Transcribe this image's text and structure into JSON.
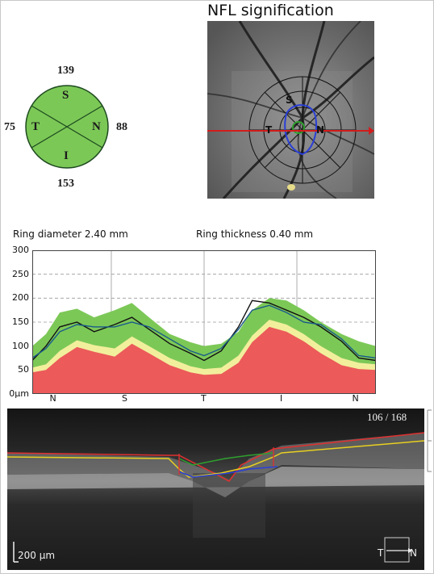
{
  "sectors": {
    "superior": "139",
    "temporal": "75",
    "nasal": "88",
    "inferior": "153",
    "labels": {
      "s": "S",
      "t": "T",
      "n": "N",
      "i": "I"
    },
    "fill_color": "#7cc857"
  },
  "fundus": {
    "title": "NFL signification",
    "labels": {
      "s": "S",
      "t": "T",
      "n": "N"
    },
    "scan_line_color": "#d21c1c"
  },
  "params": {
    "ring_diameter": "Ring diameter 2.40 mm",
    "ring_thickness": "Ring thickness 0.40 mm"
  },
  "chart_data": {
    "type": "area",
    "ylim": [
      0,
      300
    ],
    "y_ticks": [
      "300",
      "250",
      "200",
      "150",
      "100",
      "50",
      "0μm"
    ],
    "x_ticks": [
      "N",
      "S",
      "T",
      "I",
      "N"
    ],
    "x_tick_fractions": [
      0.06,
      0.27,
      0.5,
      0.73,
      0.94
    ],
    "x": [
      0,
      0.04,
      0.08,
      0.13,
      0.18,
      0.24,
      0.29,
      0.34,
      0.4,
      0.46,
      0.5,
      0.55,
      0.6,
      0.64,
      0.69,
      0.74,
      0.79,
      0.84,
      0.9,
      0.95,
      1
    ],
    "bands": {
      "red_top": [
        45,
        50,
        75,
        98,
        88,
        78,
        105,
        85,
        60,
        45,
        40,
        42,
        65,
        108,
        140,
        130,
        110,
        85,
        60,
        52,
        50
      ],
      "yellow_top": [
        55,
        62,
        90,
        112,
        102,
        95,
        120,
        100,
        75,
        58,
        52,
        55,
        80,
        122,
        155,
        145,
        125,
        100,
        75,
        65,
        62
      ],
      "green_top": [
        100,
        125,
        170,
        178,
        160,
        175,
        190,
        160,
        125,
        108,
        100,
        105,
        130,
        175,
        200,
        195,
        175,
        150,
        125,
        110,
        100
      ]
    },
    "series": [
      {
        "color": "#111111",
        "values": [
          70,
          100,
          140,
          150,
          130,
          145,
          160,
          135,
          105,
          85,
          70,
          90,
          140,
          195,
          190,
          175,
          160,
          140,
          110,
          75,
          70
        ]
      },
      {
        "color": "#1a5a8a",
        "values": [
          75,
          95,
          130,
          145,
          140,
          140,
          150,
          140,
          115,
          90,
          80,
          95,
          135,
          175,
          185,
          170,
          150,
          145,
          115,
          80,
          75
        ]
      }
    ]
  },
  "bscan": {
    "frame_counter": "106 / 168",
    "scale_bar": "200 μm",
    "orientation": {
      "left": "T",
      "right": "N"
    }
  }
}
